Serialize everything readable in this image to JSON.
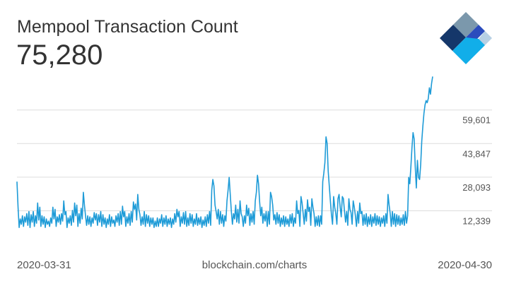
{
  "header": {
    "title": "Mempool Transaction Count",
    "current_value": "75,280"
  },
  "footer": {
    "start_date": "2020-03-31",
    "source": "blockchain.com/charts",
    "end_date": "2020-04-30"
  },
  "logo": {
    "name": "blockchain-logo"
  },
  "colors": {
    "line": "#1e9bd7",
    "grid": "#dddddd",
    "text": "#333333",
    "logo_dark": "#15376a",
    "logo_light": "#b7d0e4",
    "logo_mid": "#2b4cbd",
    "logo_cyan": "#11aee9",
    "logo_gray": "#7b98ac"
  },
  "chart_data": {
    "type": "line",
    "title": "Mempool Transaction Count",
    "xlabel": "",
    "ylabel": "",
    "x_range": [
      "2020-03-31",
      "2020-04-30"
    ],
    "y_ticks": [
      12339,
      28093,
      43847,
      59601
    ],
    "y_tick_labels": [
      "12,339",
      "28,093",
      "43,847",
      "59,601"
    ],
    "ylim": [
      -3400,
      75400
    ],
    "grid": true,
    "legend": "none",
    "series": [
      {
        "values": [
          26000,
          14000,
          4500,
          8500,
          6000,
          10000,
          5000,
          9500,
          7000,
          11000,
          5500,
          12000,
          4500,
          10500,
          7000,
          12000,
          5000,
          10000,
          6500,
          16000,
          8000,
          14000,
          5000,
          10000,
          6000,
          9500,
          4500,
          8500,
          6000,
          7500,
          5000,
          9000,
          6500,
          14000,
          8500,
          13000,
          5000,
          9500,
          7000,
          10500,
          6000,
          11000,
          7500,
          17000,
          10500,
          12000,
          4500,
          9000,
          6500,
          10000,
          5500,
          12500,
          7000,
          16000,
          10000,
          15000,
          5000,
          11000,
          6500,
          13500,
          8500,
          21000,
          15000,
          10000,
          5500,
          10000,
          6000,
          9500,
          5000,
          9000,
          6500,
          11500,
          8000,
          11000,
          5500,
          10500,
          7000,
          12000,
          5000,
          10500,
          6000,
          9000,
          4500,
          8500,
          6000,
          10500,
          5000,
          9500,
          6500,
          8000,
          5000,
          10000,
          7000,
          11000,
          5500,
          12000,
          6000,
          14500,
          9500,
          12000,
          5000,
          9500,
          6500,
          11000,
          5500,
          12000,
          7000,
          16500,
          13000,
          15500,
          8000,
          20000,
          13000,
          10500,
          5500,
          9500,
          6000,
          12000,
          5000,
          10500,
          6500,
          10000,
          5000,
          9000,
          6000,
          9000,
          4500,
          7500,
          5000,
          9000,
          5000,
          8500,
          6500,
          10500,
          5000,
          9000,
          6000,
          10000,
          5000,
          8500,
          6000,
          9000,
          4500,
          8500,
          6000,
          11000,
          7000,
          13000,
          9500,
          12000,
          5000,
          9500,
          6500,
          11500,
          6000,
          12000,
          5000,
          9000,
          5500,
          11000,
          6500,
          10500,
          5000,
          8500,
          6000,
          11000,
          5500,
          9000,
          6000,
          9500,
          4500,
          8000,
          5500,
          9500,
          5000,
          10500,
          6500,
          12000,
          5500,
          22000,
          27000,
          24000,
          15000,
          12000,
          8500,
          13000,
          6000,
          12000,
          6500,
          10500,
          5000,
          10000,
          7500,
          17000,
          22000,
          28000,
          20000,
          12000,
          6000,
          11000,
          8500,
          15000,
          7000,
          13000,
          6500,
          17000,
          11000,
          9500,
          5000,
          10000,
          6500,
          15000,
          10000,
          13500,
          5500,
          11000,
          7000,
          12000,
          6000,
          17000,
          21000,
          29000,
          25000,
          16500,
          10000,
          14000,
          6500,
          11000,
          7500,
          12000,
          5000,
          12000,
          6000,
          21000,
          19000,
          15000,
          8000,
          10500,
          6000,
          11500,
          6500,
          10500,
          5000,
          9000,
          6000,
          10000,
          5000,
          9500,
          6000,
          8500,
          5000,
          10500,
          6500,
          11000,
          5000,
          9000,
          6500,
          17000,
          11000,
          12500,
          5000,
          19000,
          16000,
          11000,
          6000,
          13000,
          7500,
          17500,
          12000,
          14000,
          5500,
          18000,
          14000,
          11000,
          5000,
          9500,
          5500,
          10000,
          5000,
          10000,
          6000,
          26000,
          30000,
          35000,
          47000,
          44000,
          31000,
          24000,
          17000,
          10500,
          6000,
          19000,
          14000,
          11000,
          6000,
          18000,
          20000,
          14000,
          9500,
          19000,
          18000,
          12000,
          7000,
          12000,
          5500,
          18000,
          13000,
          11500,
          6000,
          17000,
          14000,
          10000,
          5000,
          12000,
          6500,
          16000,
          11000,
          12000,
          5500,
          10500,
          6000,
          11000,
          5000,
          9500,
          6000,
          10500,
          5000,
          9500,
          6500,
          11000,
          5500,
          10000,
          6000,
          9500,
          5000,
          9000,
          6500,
          10000,
          5000,
          11000,
          6500,
          20000,
          15000,
          11000,
          5000,
          12000,
          6000,
          11000,
          5000,
          10500,
          6000,
          10000,
          5500,
          9000,
          6000,
          10500,
          5500,
          12000,
          6500,
          10000,
          28000,
          25000,
          33000,
          42000,
          49000,
          46000,
          33000,
          23000,
          36000,
          28000,
          27000,
          34000,
          45000,
          52000,
          58000,
          62000,
          64000,
          63000,
          65000,
          70000,
          67000,
          72000,
          75280
        ]
      }
    ]
  }
}
